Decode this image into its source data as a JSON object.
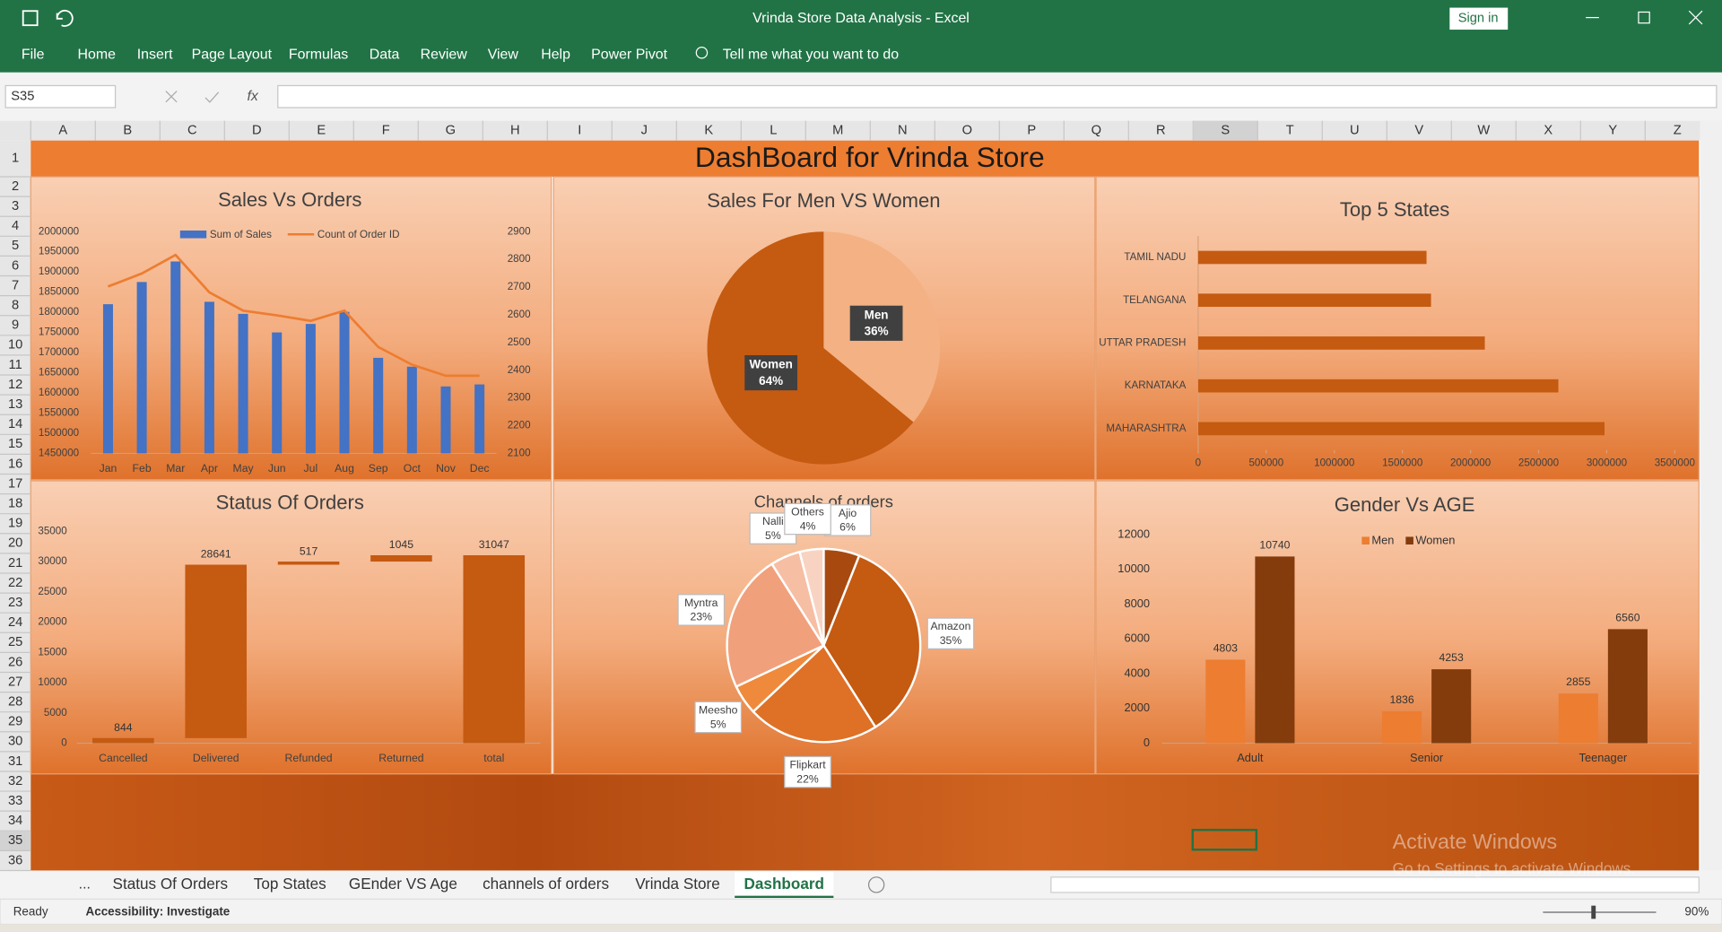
{
  "window": {
    "title": "Vrinda Store Data Analysis  -  Excel",
    "sign_in": "Sign in"
  },
  "ribbon": {
    "tabs": [
      "File",
      "Home",
      "Insert",
      "Page Layout",
      "Formulas",
      "Data",
      "Review",
      "View",
      "Help",
      "Power Pivot"
    ],
    "tell_me": "Tell me what you want to do"
  },
  "formula_bar": {
    "name_box": "S35",
    "fx": "fx"
  },
  "sheet": {
    "columns": [
      "A",
      "B",
      "C",
      "D",
      "E",
      "F",
      "G",
      "H",
      "I",
      "J",
      "K",
      "L",
      "M",
      "N",
      "O",
      "P",
      "Q",
      "R",
      "S",
      "T",
      "U",
      "V",
      "W",
      "X",
      "Y",
      "Z"
    ],
    "rows": [
      1,
      2,
      3,
      4,
      5,
      6,
      7,
      8,
      9,
      10,
      11,
      12,
      13,
      14,
      15,
      16,
      17,
      18,
      19,
      20,
      21,
      22,
      23,
      24,
      25,
      26,
      27,
      28,
      29,
      30,
      31,
      32,
      33,
      34,
      35,
      36
    ]
  },
  "dashboard_title": "DashBoard for Vrinda Store",
  "chart_data": [
    {
      "type": "combo",
      "title": "Sales Vs Orders",
      "categories": [
        "Jan",
        "Feb",
        "Mar",
        "Apr",
        "May",
        "Jun",
        "Jul",
        "Aug",
        "Sep",
        "Oct",
        "Nov",
        "Dec"
      ],
      "series": [
        {
          "name": "Sum of Sales",
          "type": "bar",
          "color": "#4472c4",
          "values": [
            1820000,
            1875000,
            1926000,
            1826000,
            1796000,
            1750000,
            1771000,
            1801000,
            1687000,
            1665000,
            1616000,
            1621000
          ]
        },
        {
          "name": "Count of Order ID",
          "type": "line",
          "color": "#ed7d31",
          "axis": "y2",
          "values": [
            2702,
            2749,
            2816,
            2681,
            2615,
            2598,
            2578,
            2615,
            2484,
            2420,
            2380,
            2380
          ]
        }
      ],
      "ylim": [
        1450000,
        2000000
      ],
      "yticks": [
        1450000,
        1500000,
        1550000,
        1600000,
        1650000,
        1700000,
        1750000,
        1800000,
        1850000,
        1900000,
        1950000,
        2000000
      ],
      "y2lim": [
        2100,
        2900
      ],
      "y2ticks": [
        2100,
        2200,
        2300,
        2400,
        2500,
        2600,
        2700,
        2800,
        2900
      ],
      "legend": "top"
    },
    {
      "type": "pie",
      "title": "Sales For Men VS Women",
      "categories": [
        "Men",
        "Women"
      ],
      "values": [
        36,
        64
      ],
      "value_labels": [
        "36%",
        "64%"
      ],
      "colors": [
        "#f4b183",
        "#c55a11"
      ],
      "label_style": "dark"
    },
    {
      "type": "hbar",
      "title": "Top 5 States",
      "categories": [
        "TAMIL NADU",
        "TELANGANA",
        "UTTAR PRADESH",
        "KARNATAKA",
        "MAHARASHTRA"
      ],
      "values": [
        1677000,
        1710000,
        2105000,
        2645000,
        2984000
      ],
      "color": "#c55a11",
      "xlim": [
        0,
        3500000
      ],
      "xticks": [
        0,
        500000,
        1000000,
        1500000,
        2000000,
        2500000,
        3000000,
        3500000
      ]
    },
    {
      "type": "waterfall",
      "title": "Status Of Orders",
      "categories": [
        "Cancelled",
        "Delivered",
        "Refunded",
        "Returned",
        "total"
      ],
      "values": [
        844,
        28641,
        517,
        1045,
        31047
      ],
      "color": "#c55a11",
      "last_is_total": true,
      "ylim": [
        0,
        35000
      ],
      "yticks": [
        0,
        5000,
        10000,
        15000,
        20000,
        25000,
        30000,
        35000
      ]
    },
    {
      "type": "pie",
      "title": "Channels of orders",
      "categories": [
        "Ajio",
        "Amazon",
        "Flipkart",
        "Meesho",
        "Myntra",
        "Nalli",
        "Others"
      ],
      "values": [
        6,
        35,
        22,
        5,
        23,
        5,
        4
      ],
      "value_labels": [
        "6%",
        "35%",
        "22%",
        "5%",
        "23%",
        "5%",
        "4%"
      ],
      "colors": [
        "#a84a10",
        "#c55a11",
        "#de7126",
        "#ef8a3c",
        "#f1a07c",
        "#f6bea3",
        "#f9d3c2"
      ],
      "label_style": "callout"
    },
    {
      "type": "grouped_bar",
      "title": "Gender Vs AGE",
      "categories": [
        "Adult",
        "Senior",
        "Teenager"
      ],
      "series": [
        {
          "name": "Men",
          "color": "#ed7d31",
          "values": [
            4803,
            1836,
            2855
          ]
        },
        {
          "name": "Women",
          "color": "#843c0c",
          "values": [
            10740,
            4253,
            6560
          ]
        }
      ],
      "ylim": [
        0,
        12000
      ],
      "yticks": [
        0,
        2000,
        4000,
        6000,
        8000,
        10000,
        12000
      ],
      "legend": "top"
    }
  ],
  "sheet_tabs": {
    "more": "...",
    "tabs": [
      "Status Of Orders",
      "Top States",
      "GEnder VS Age",
      "channels of orders",
      "Vrinda Store",
      "Dashboard"
    ]
  },
  "status_bar": {
    "status": "Ready",
    "accessibility": "Accessibility: Investigate",
    "zoom": "90%"
  },
  "watermark": {
    "title": "Activate Windows",
    "subtitle": "Go to Settings to activate Windows."
  }
}
